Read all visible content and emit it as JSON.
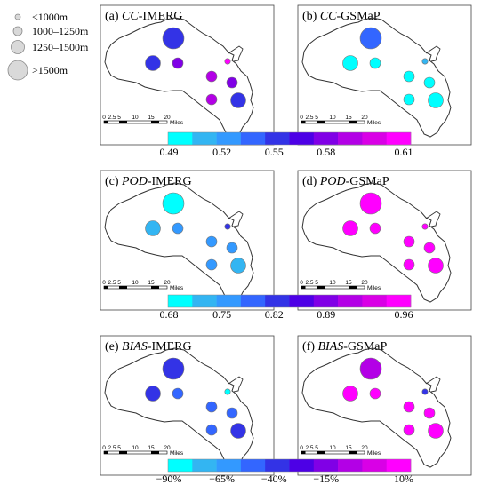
{
  "legend": {
    "sizes": [
      {
        "label": "<1000m"
      },
      {
        "label": "1000–1250m"
      },
      {
        "label": "1250–1500m"
      },
      {
        "label": ">1500m"
      }
    ]
  },
  "colors": {
    "scale": [
      "#00ffff",
      "#33b5f2",
      "#3399ff",
      "#3366ff",
      "#3333e6",
      "#4d00e6",
      "#8000e6",
      "#b300e6",
      "#d900e6",
      "#ff00ff"
    ],
    "border": "#333333",
    "circle_outline": "#777777"
  },
  "scale_bar": {
    "ticks": [
      "0",
      "2.5",
      "5",
      "10",
      "15",
      "20"
    ],
    "unit": "Miles"
  },
  "panels": [
    {
      "id": "a",
      "prefix": "(a) ",
      "metric": "CC",
      "suffix": "-IMERG",
      "stations": [
        {
          "c": 4,
          "s": 3
        },
        {
          "c": 4,
          "s": 2
        },
        {
          "c": 6,
          "s": 1
        },
        {
          "c": 9,
          "s": 0
        },
        {
          "c": 7,
          "s": 1
        },
        {
          "c": 6,
          "s": 1
        },
        {
          "c": 7,
          "s": 1
        },
        {
          "c": 4,
          "s": 2
        }
      ]
    },
    {
      "id": "b",
      "prefix": "(b) ",
      "metric": "CC",
      "suffix": "-GSMaP",
      "stations": [
        {
          "c": 3,
          "s": 3
        },
        {
          "c": 0,
          "s": 2
        },
        {
          "c": 0,
          "s": 1
        },
        {
          "c": 1,
          "s": 0
        },
        {
          "c": 0,
          "s": 1
        },
        {
          "c": 0,
          "s": 1
        },
        {
          "c": 0,
          "s": 1
        },
        {
          "c": 0,
          "s": 2
        }
      ]
    },
    {
      "id": "c",
      "prefix": "(c) ",
      "metric": "POD",
      "suffix": "-IMERG",
      "stations": [
        {
          "c": 0,
          "s": 3
        },
        {
          "c": 1,
          "s": 2
        },
        {
          "c": 2,
          "s": 1
        },
        {
          "c": 4,
          "s": 0
        },
        {
          "c": 2,
          "s": 1
        },
        {
          "c": 2,
          "s": 1
        },
        {
          "c": 2,
          "s": 1
        },
        {
          "c": 1,
          "s": 2
        }
      ]
    },
    {
      "id": "d",
      "prefix": "(d) ",
      "metric": "POD",
      "suffix": "-GSMaP",
      "stations": [
        {
          "c": 9,
          "s": 3
        },
        {
          "c": 9,
          "s": 2
        },
        {
          "c": 9,
          "s": 1
        },
        {
          "c": 9,
          "s": 0
        },
        {
          "c": 9,
          "s": 1
        },
        {
          "c": 9,
          "s": 1
        },
        {
          "c": 9,
          "s": 1
        },
        {
          "c": 9,
          "s": 2
        }
      ]
    },
    {
      "id": "e",
      "prefix": "(e) ",
      "metric": "BIAS",
      "suffix": "-IMERG",
      "stations": [
        {
          "c": 4,
          "s": 3
        },
        {
          "c": 4,
          "s": 2
        },
        {
          "c": 3,
          "s": 1
        },
        {
          "c": 0,
          "s": 0
        },
        {
          "c": 3,
          "s": 1
        },
        {
          "c": 3,
          "s": 1
        },
        {
          "c": 3,
          "s": 1
        },
        {
          "c": 4,
          "s": 2
        }
      ]
    },
    {
      "id": "f",
      "prefix": "(f) ",
      "metric": "BIAS",
      "suffix": "-GSMaP",
      "stations": [
        {
          "c": 7,
          "s": 3
        },
        {
          "c": 9,
          "s": 2
        },
        {
          "c": 9,
          "s": 1
        },
        {
          "c": 4,
          "s": 0
        },
        {
          "c": 9,
          "s": 1
        },
        {
          "c": 9,
          "s": 1
        },
        {
          "c": 9,
          "s": 1
        },
        {
          "c": 9,
          "s": 2
        }
      ]
    }
  ],
  "colorbars": [
    {
      "id": "cc",
      "labels": [
        "0.49",
        "0.52",
        "0.55",
        "0.58",
        "0.61"
      ]
    },
    {
      "id": "pod",
      "labels": [
        "0.68",
        "0.75",
        "0.82",
        "0.89",
        "0.96"
      ]
    },
    {
      "id": "bias",
      "labels": [
        "−90%",
        "−65%",
        "−40%",
        "−15%",
        "10%"
      ]
    }
  ]
}
